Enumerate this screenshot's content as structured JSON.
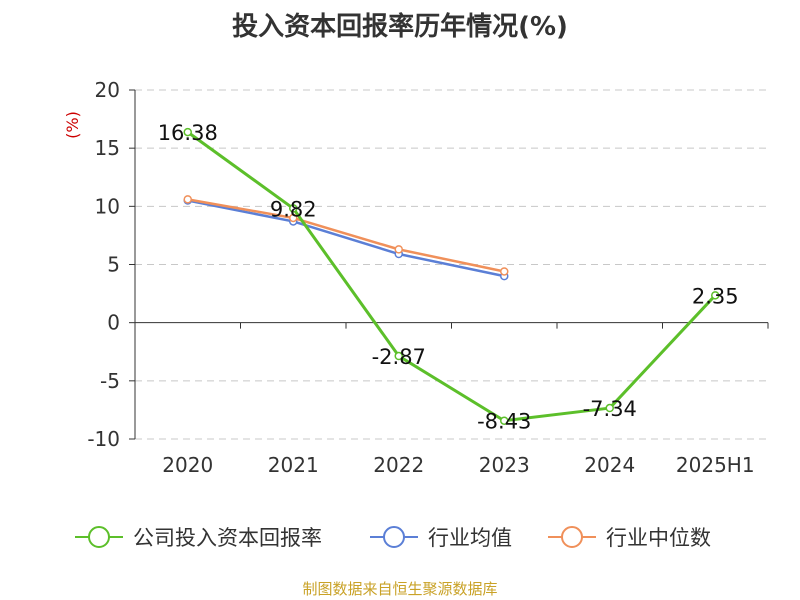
{
  "title": "投入资本回报率历年情况(%)",
  "source": "制图数据来自恒生聚源数据库",
  "colors": {
    "company": "#5cbf2a",
    "industry_avg": "#5b7fd6",
    "industry_median": "#f0905a",
    "grid": "#c8c8c8",
    "axis": "#333333",
    "ylabel": "#cc0000"
  },
  "chart_data": {
    "type": "line",
    "title": "投入资本回报率历年情况(%)",
    "ylabel": "(%)",
    "xlabel": "",
    "categories": [
      "2020",
      "2021",
      "2022",
      "2023",
      "2024",
      "2025H1"
    ],
    "ylim": [
      -10,
      20
    ],
    "yticks": [
      20,
      15,
      10,
      5,
      0,
      -5,
      -10
    ],
    "grid": "horizontal dashed",
    "legend_position": "bottom",
    "series": [
      {
        "name": "公司投入资本回报率",
        "color_key": "company",
        "values": [
          16.38,
          9.82,
          -2.87,
          -8.43,
          -7.34,
          2.35
        ],
        "labels": [
          "16.38",
          "9.82",
          "-2.87",
          "-8.43",
          "-7.34",
          "2.35"
        ]
      },
      {
        "name": "行业均值",
        "color_key": "industry_avg",
        "values": [
          10.5,
          8.7,
          5.9,
          4.0,
          null,
          null
        ]
      },
      {
        "name": "行业中位数",
        "color_key": "industry_median",
        "values": [
          10.6,
          9.0,
          6.3,
          4.4,
          null,
          null
        ]
      }
    ]
  }
}
